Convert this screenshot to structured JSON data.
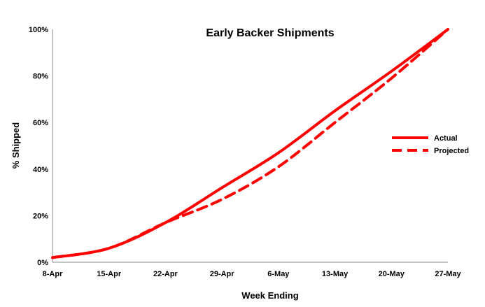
{
  "chart_data": {
    "type": "line",
    "title": "Early Backer Shipments",
    "xlabel": "Week Ending",
    "ylabel": "% Shipped",
    "categories": [
      "8-Apr",
      "15-Apr",
      "22-Apr",
      "29-Apr",
      "6-May",
      "13-May",
      "20-May",
      "27-May"
    ],
    "y_ticks": [
      "0%",
      "20%",
      "40%",
      "60%",
      "80%",
      "100%"
    ],
    "ylim": [
      0,
      100
    ],
    "grid": false,
    "legend_position": "right",
    "series": [
      {
        "name": "Actual",
        "style": "solid",
        "color": "#ff0000",
        "values": [
          2,
          6,
          17,
          32,
          47,
          65,
          82,
          100
        ]
      },
      {
        "name": "Projected",
        "style": "dashed",
        "color": "#ff0000",
        "values": [
          2,
          6,
          17,
          27,
          41,
          60,
          79,
          100
        ]
      }
    ]
  }
}
